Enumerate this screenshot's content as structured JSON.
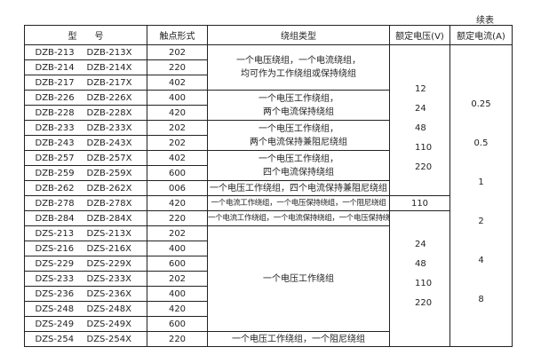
{
  "continued_label": "续表",
  "headers": [
    "型　　号",
    "触点形式",
    "绕组类型",
    "额定电压(V)",
    "额定电流(A)"
  ],
  "rows": [
    {
      "m1": "DZB-213",
      "m2": "DZB-213X",
      "contact": "202"
    },
    {
      "m1": "DZB-214",
      "m2": "DZB-214X",
      "contact": "220"
    },
    {
      "m1": "DZB-217",
      "m2": "DZB-217X",
      "contact": "402"
    },
    {
      "m1": "DZB-226",
      "m2": "DZB-226X",
      "contact": "400"
    },
    {
      "m1": "DZB-228",
      "m2": "DZB-228X",
      "contact": "420"
    },
    {
      "m1": "DZB-233",
      "m2": "DZB-233X",
      "contact": "202"
    },
    {
      "m1": "DZB-243",
      "m2": "DZB-243X",
      "contact": "202"
    },
    {
      "m1": "DZB-257",
      "m2": "DZB-257X",
      "contact": "402"
    },
    {
      "m1": "DZB-259",
      "m2": "DZB-259X",
      "contact": "600"
    },
    {
      "m1": "DZB-262",
      "m2": "DZB-262X",
      "contact": "006"
    },
    {
      "m1": "DZB-278",
      "m2": "DZB-278X",
      "contact": "420"
    },
    {
      "m1": "DZB-284",
      "m2": "DZB-284X",
      "contact": "220"
    },
    {
      "m1": "DZS-213",
      "m2": "DZS-213X",
      "contact": "202"
    },
    {
      "m1": "DZS-216",
      "m2": "DZS-216X",
      "contact": "400"
    },
    {
      "m1": "DZS-229",
      "m2": "DZS-229X",
      "contact": "600"
    },
    {
      "m1": "DZS-233",
      "m2": "DZS-233X",
      "contact": "202"
    },
    {
      "m1": "DZS-236",
      "m2": "DZS-236X",
      "contact": "400"
    },
    {
      "m1": "DZS-248",
      "m2": "DZS-248X",
      "contact": "420"
    },
    {
      "m1": "DZS-249",
      "m2": "DZS-249X",
      "contact": "600"
    },
    {
      "m1": "DZS-254",
      "m2": "DZS-254X",
      "contact": "220"
    }
  ],
  "windings": [
    {
      "start": 0,
      "span": 3,
      "lines": [
        "一个电压绕组，一个电流绕组，",
        "均可作为工作绕组或保持绕组"
      ]
    },
    {
      "start": 3,
      "span": 2,
      "lines": [
        "一个电压工作绕组，",
        "两个电流保持绕组"
      ]
    },
    {
      "start": 5,
      "span": 2,
      "lines": [
        "一个电压工作绕组，",
        "两个电流保持兼阻尼绕组"
      ]
    },
    {
      "start": 7,
      "span": 2,
      "lines": [
        "一个电压工作绕组，",
        "四个电流保持绕组"
      ]
    },
    {
      "start": 9,
      "span": 1,
      "lines": [
        "一个电压工作绕组，四个电流保持兼阻尼绕组"
      ]
    },
    {
      "start": 10,
      "span": 1,
      "small": true,
      "lines": [
        "一个电流工作绕组，一个电压保持绕组，一个阻尼绕组"
      ]
    },
    {
      "start": 11,
      "span": 1,
      "small": true,
      "lines": [
        "一个电流工作绕组，一个电流保持绕组，一个电压保持绕组"
      ]
    },
    {
      "start": 12,
      "span": 7,
      "lines": [
        "一个电压工作绕组"
      ]
    },
    {
      "start": 19,
      "span": 1,
      "lines": [
        "一个电压工作绕组，一个阻尼绕组"
      ]
    }
  ],
  "voltages": [
    {
      "start": 0,
      "span": 10,
      "values": [
        "12",
        "24",
        "48",
        "110",
        "220"
      ]
    },
    {
      "start": 10,
      "span": 1,
      "values": [
        "110"
      ]
    },
    {
      "start": 11,
      "span": 9,
      "values": [
        "24",
        "48",
        "110",
        "220"
      ]
    }
  ],
  "currents": [
    "0.25",
    "0.5",
    "1",
    "2",
    "4",
    "8"
  ]
}
